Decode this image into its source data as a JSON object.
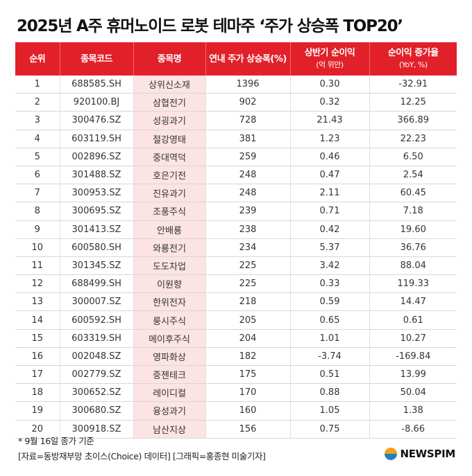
{
  "title": "2025년 A주 휴머노이드 로봇 테마주 ‘주가 상승폭 TOP20’",
  "chart_data": {
    "type": "table",
    "columns": [
      {
        "main": "순위",
        "sub": ""
      },
      {
        "main": "종목코드",
        "sub": ""
      },
      {
        "main": "종목명",
        "sub": ""
      },
      {
        "main": "연내 주가 상승폭",
        "sub": "(%)"
      },
      {
        "main": "상반기 순이익",
        "sub": "(억 위안)"
      },
      {
        "main": "순이익 증가율",
        "sub": "(YoY, %)"
      }
    ],
    "rows": [
      [
        "1",
        "688585.SH",
        "상위신소재",
        "1396",
        "0.30",
        "-32.91"
      ],
      [
        "2",
        "920100.BJ",
        "삼협전기",
        "902",
        "0.32",
        "12.25"
      ],
      [
        "3",
        "300476.SZ",
        "성굉과기",
        "728",
        "21.43",
        "366.89"
      ],
      [
        "4",
        "603119.SH",
        "절강영태",
        "381",
        "1.23",
        "22.23"
      ],
      [
        "5",
        "002896.SZ",
        "중대역덕",
        "259",
        "0.46",
        "6.50"
      ],
      [
        "6",
        "301488.SZ",
        "호은기전",
        "248",
        "0.47",
        "2.54"
      ],
      [
        "7",
        "300953.SZ",
        "진유과기",
        "248",
        "2.11",
        "60.45"
      ],
      [
        "8",
        "300695.SZ",
        "조풍주식",
        "239",
        "0.71",
        "7.18"
      ],
      [
        "9",
        "301413.SZ",
        "안배룡",
        "238",
        "0.42",
        "19.60"
      ],
      [
        "10",
        "600580.SH",
        "와룡전기",
        "234",
        "5.37",
        "36.76"
      ],
      [
        "11",
        "301345.SZ",
        "도도차업",
        "225",
        "3.42",
        "88.04"
      ],
      [
        "12",
        "688499.SH",
        "이원향",
        "225",
        "0.33",
        "119.33"
      ],
      [
        "13",
        "300007.SZ",
        "한위전자",
        "218",
        "0.59",
        "14.47"
      ],
      [
        "14",
        "600592.SH",
        "룽시주식",
        "205",
        "0.65",
        "0.61"
      ],
      [
        "15",
        "603319.SH",
        "메이후주식",
        "204",
        "1.01",
        "10.27"
      ],
      [
        "16",
        "002048.SZ",
        "영파화상",
        "182",
        "-3.74",
        "-169.84"
      ],
      [
        "17",
        "002779.SZ",
        "중젠테크",
        "175",
        "0.51",
        "13.99"
      ],
      [
        "18",
        "300652.SZ",
        "레이디컬",
        "170",
        "0.88",
        "50.04"
      ],
      [
        "19",
        "300680.SZ",
        "융성과기",
        "160",
        "1.05",
        "1.38"
      ],
      [
        "20",
        "300918.SZ",
        "남산지상",
        "156",
        "0.75",
        "-8.66"
      ]
    ]
  },
  "footnote": "* 9월 16일 종가 기준",
  "source": "[자료=동방재부망 초이스(Choice) 데이터] [그래픽=홍종현 미술기자]",
  "brand": "NEWSPIM",
  "colors": {
    "header": "#e2202a",
    "name_column": "#fce3e4"
  }
}
